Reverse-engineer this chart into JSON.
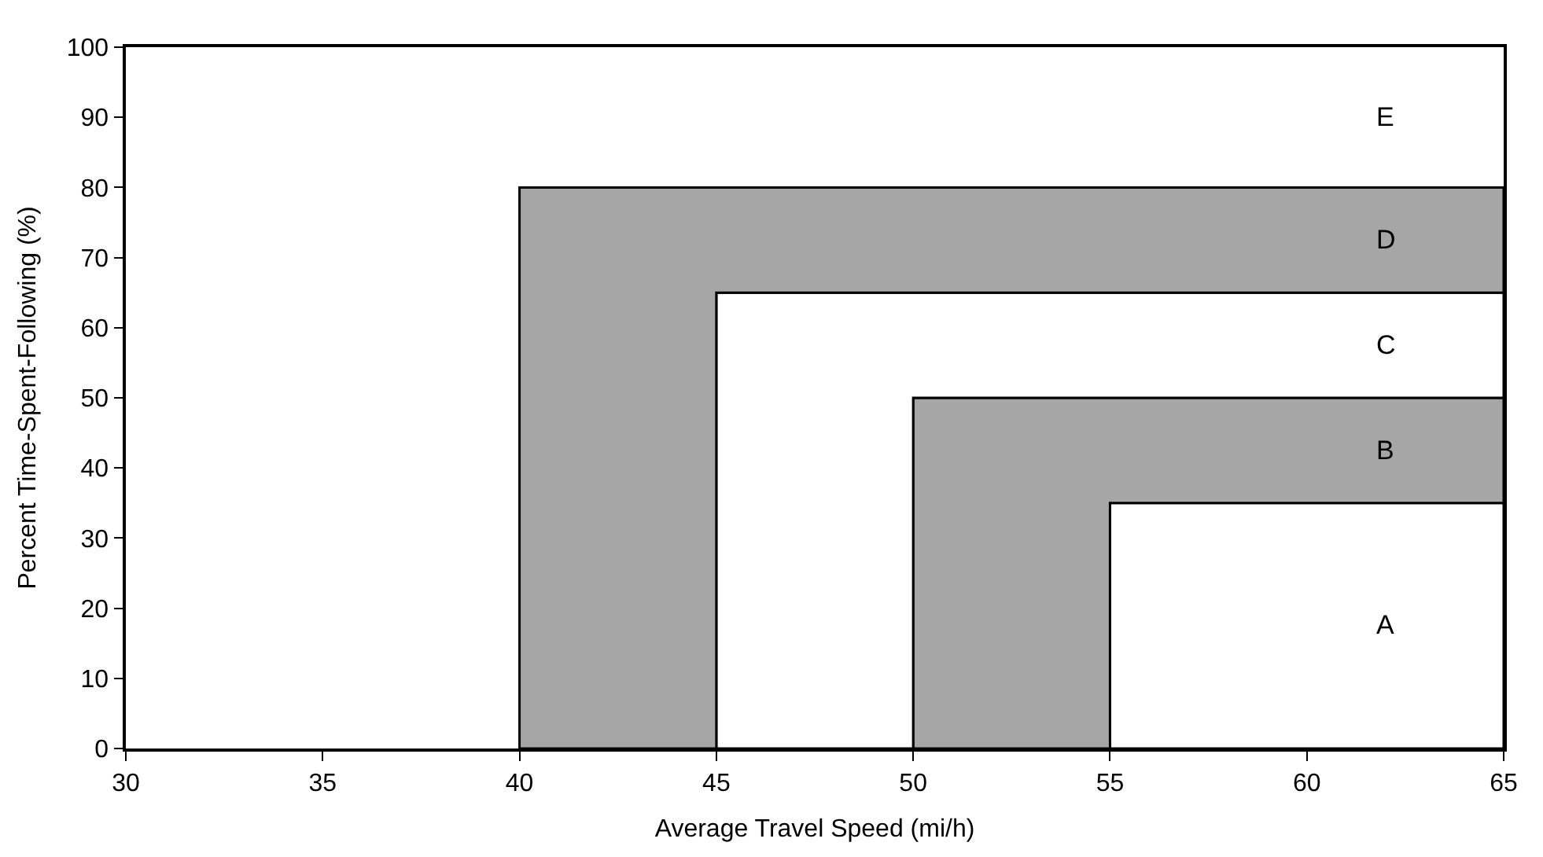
{
  "chart_data": {
    "type": "area",
    "xlabel": "Average Travel Speed (mi/h)",
    "ylabel": "Percent Time-Spent-Following (%)",
    "xlim": [
      30,
      65
    ],
    "ylim": [
      0,
      100
    ],
    "xticks": [
      30,
      35,
      40,
      45,
      50,
      55,
      60,
      65
    ],
    "yticks": [
      0,
      10,
      20,
      30,
      40,
      50,
      60,
      70,
      80,
      90,
      100
    ],
    "grid": false,
    "series": [
      {
        "color": "#ffffff",
        "x": [
          55,
          55,
          65,
          65
        ],
        "values": [
          0,
          35,
          35,
          0
        ]
      },
      {
        "color": "#a6a6a6",
        "x": [
          50,
          50,
          65,
          65,
          55,
          55
        ],
        "values": [
          0,
          50,
          50,
          35,
          35,
          0
        ]
      },
      {
        "color": "#ffffff",
        "x": [
          45,
          45,
          65,
          65,
          50,
          50
        ],
        "values": [
          0,
          65,
          65,
          50,
          50,
          0
        ]
      },
      {
        "color": "#a6a6a6",
        "x": [
          40,
          40,
          65,
          65,
          45,
          45
        ],
        "values": [
          0,
          80,
          80,
          65,
          65,
          0
        ]
      }
    ],
    "annotations": [
      "E",
      "D",
      "C",
      "B",
      "A"
    ]
  }
}
